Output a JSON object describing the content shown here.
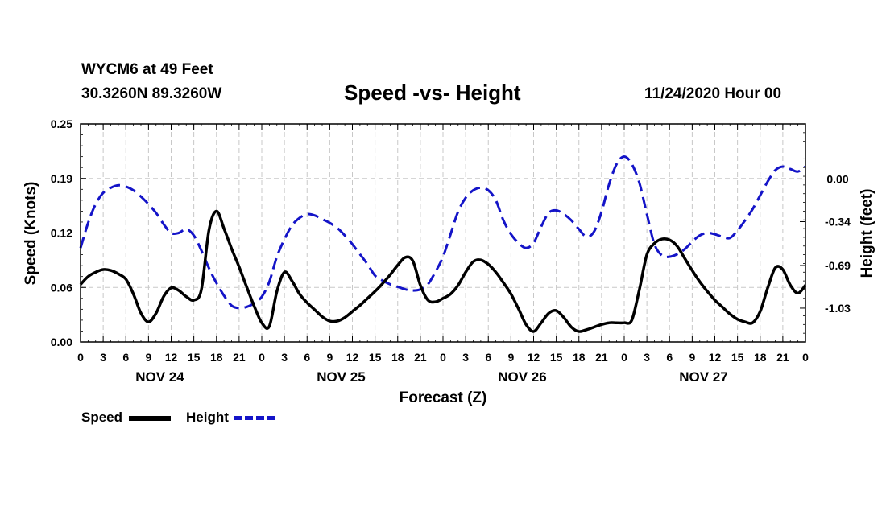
{
  "header": {
    "station": "WYCM6 at 49 Feet",
    "coords": "30.3260N 89.3260W",
    "title": "Speed -vs- Height",
    "date": "11/24/2020 Hour 00"
  },
  "legend": {
    "speed": "Speed",
    "height": "Height"
  },
  "chart_data": {
    "type": "line",
    "title": "Speed -vs- Height",
    "xlabel": "Forecast (Z)",
    "ylabel": "Speed (Knots)",
    "y2label": "Height (feet)",
    "ylim": [
      0,
      0.25
    ],
    "y2lim": [
      -1.3,
      0.44
    ],
    "yticks": [
      "0.00",
      "0.06",
      "0.12",
      "0.19",
      "0.25"
    ],
    "y2ticks": [
      {
        "label": "0.00",
        "value": 0.0
      },
      {
        "label": "-0.34",
        "value": -0.34
      },
      {
        "label": "-0.69",
        "value": -0.69
      },
      {
        "label": "-1.03",
        "value": -1.03
      }
    ],
    "xlim": [
      0,
      96
    ],
    "xticks": [
      "0",
      "3",
      "6",
      "9",
      "12",
      "15",
      "18",
      "21",
      "0",
      "3",
      "6",
      "9",
      "12",
      "15",
      "18",
      "21",
      "0",
      "3",
      "6",
      "9",
      "12",
      "15",
      "18",
      "21",
      "0",
      "3",
      "6",
      "9",
      "12",
      "15",
      "18",
      "21",
      "0"
    ],
    "days": [
      {
        "label": "NOV 24",
        "center": 10.5
      },
      {
        "label": "NOV 25",
        "center": 34.5
      },
      {
        "label": "NOV 26",
        "center": 58.5
      },
      {
        "label": "NOV 27",
        "center": 82.5
      }
    ],
    "grid": true,
    "series": [
      {
        "name": "Speed",
        "axis": "left",
        "color": "#000000",
        "style": "solid",
        "points": [
          [
            0,
            0.066
          ],
          [
            1,
            0.075
          ],
          [
            2,
            0.08
          ],
          [
            3,
            0.083
          ],
          [
            4,
            0.082
          ],
          [
            5,
            0.078
          ],
          [
            6,
            0.072
          ],
          [
            7,
            0.055
          ],
          [
            8,
            0.033
          ],
          [
            9,
            0.023
          ],
          [
            10,
            0.033
          ],
          [
            11,
            0.052
          ],
          [
            12,
            0.062
          ],
          [
            13,
            0.059
          ],
          [
            14,
            0.052
          ],
          [
            15,
            0.048
          ],
          [
            16,
            0.06
          ],
          [
            17,
            0.128
          ],
          [
            18,
            0.15
          ],
          [
            19,
            0.13
          ],
          [
            20,
            0.107
          ],
          [
            21,
            0.086
          ],
          [
            22,
            0.063
          ],
          [
            23,
            0.041
          ],
          [
            24,
            0.022
          ],
          [
            25,
            0.018
          ],
          [
            26,
            0.058
          ],
          [
            27,
            0.08
          ],
          [
            28,
            0.07
          ],
          [
            29,
            0.055
          ],
          [
            30,
            0.045
          ],
          [
            31,
            0.037
          ],
          [
            32,
            0.029
          ],
          [
            33,
            0.024
          ],
          [
            34,
            0.024
          ],
          [
            35,
            0.028
          ],
          [
            36,
            0.035
          ],
          [
            37,
            0.042
          ],
          [
            38,
            0.05
          ],
          [
            39,
            0.058
          ],
          [
            40,
            0.067
          ],
          [
            41,
            0.077
          ],
          [
            42,
            0.088
          ],
          [
            43,
            0.097
          ],
          [
            44,
            0.093
          ],
          [
            45,
            0.065
          ],
          [
            46,
            0.048
          ],
          [
            47,
            0.046
          ],
          [
            48,
            0.05
          ],
          [
            49,
            0.055
          ],
          [
            50,
            0.065
          ],
          [
            51,
            0.08
          ],
          [
            52,
            0.092
          ],
          [
            53,
            0.094
          ],
          [
            54,
            0.089
          ],
          [
            55,
            0.08
          ],
          [
            56,
            0.068
          ],
          [
            57,
            0.055
          ],
          [
            58,
            0.038
          ],
          [
            59,
            0.02
          ],
          [
            60,
            0.012
          ],
          [
            61,
            0.022
          ],
          [
            62,
            0.033
          ],
          [
            63,
            0.036
          ],
          [
            64,
            0.028
          ],
          [
            65,
            0.017
          ],
          [
            66,
            0.012
          ],
          [
            67,
            0.014
          ],
          [
            68,
            0.017
          ],
          [
            69,
            0.02
          ],
          [
            70,
            0.022
          ],
          [
            71,
            0.022
          ],
          [
            72,
            0.022
          ],
          [
            73,
            0.025
          ],
          [
            74,
            0.06
          ],
          [
            75,
            0.1
          ],
          [
            76,
            0.113
          ],
          [
            77,
            0.118
          ],
          [
            78,
            0.117
          ],
          [
            79,
            0.11
          ],
          [
            80,
            0.096
          ],
          [
            81,
            0.082
          ],
          [
            82,
            0.069
          ],
          [
            83,
            0.058
          ],
          [
            84,
            0.048
          ],
          [
            85,
            0.04
          ],
          [
            86,
            0.032
          ],
          [
            87,
            0.026
          ],
          [
            88,
            0.023
          ],
          [
            89,
            0.022
          ],
          [
            90,
            0.035
          ],
          [
            91,
            0.062
          ],
          [
            92,
            0.085
          ],
          [
            93,
            0.083
          ],
          [
            94,
            0.065
          ],
          [
            95,
            0.056
          ],
          [
            96,
            0.065
          ]
        ]
      },
      {
        "name": "Height",
        "axis": "right",
        "color": "#1414c8",
        "style": "dashed",
        "points": [
          [
            0,
            -0.55
          ],
          [
            1,
            -0.35
          ],
          [
            2,
            -0.2
          ],
          [
            3,
            -0.11
          ],
          [
            4,
            -0.07
          ],
          [
            5,
            -0.05
          ],
          [
            6,
            -0.06
          ],
          [
            7,
            -0.09
          ],
          [
            8,
            -0.14
          ],
          [
            9,
            -0.2
          ],
          [
            10,
            -0.27
          ],
          [
            11,
            -0.36
          ],
          [
            12,
            -0.43
          ],
          [
            13,
            -0.43
          ],
          [
            14,
            -0.4
          ],
          [
            15,
            -0.45
          ],
          [
            16,
            -0.57
          ],
          [
            17,
            -0.71
          ],
          [
            18,
            -0.83
          ],
          [
            19,
            -0.93
          ],
          [
            20,
            -1.01
          ],
          [
            21,
            -1.03
          ],
          [
            22,
            -1.02
          ],
          [
            23,
            -0.99
          ],
          [
            24,
            -0.94
          ],
          [
            25,
            -0.82
          ],
          [
            26,
            -0.62
          ],
          [
            27,
            -0.48
          ],
          [
            28,
            -0.37
          ],
          [
            29,
            -0.31
          ],
          [
            30,
            -0.28
          ],
          [
            31,
            -0.29
          ],
          [
            32,
            -0.32
          ],
          [
            33,
            -0.35
          ],
          [
            34,
            -0.39
          ],
          [
            35,
            -0.45
          ],
          [
            36,
            -0.52
          ],
          [
            37,
            -0.6
          ],
          [
            38,
            -0.68
          ],
          [
            39,
            -0.77
          ],
          [
            40,
            -0.81
          ],
          [
            41,
            -0.84
          ],
          [
            42,
            -0.86
          ],
          [
            43,
            -0.88
          ],
          [
            44,
            -0.89
          ],
          [
            45,
            -0.88
          ],
          [
            46,
            -0.84
          ],
          [
            47,
            -0.74
          ],
          [
            48,
            -0.62
          ],
          [
            49,
            -0.44
          ],
          [
            50,
            -0.26
          ],
          [
            51,
            -0.15
          ],
          [
            52,
            -0.09
          ],
          [
            53,
            -0.07
          ],
          [
            54,
            -0.09
          ],
          [
            55,
            -0.17
          ],
          [
            56,
            -0.33
          ],
          [
            57,
            -0.44
          ],
          [
            58,
            -0.51
          ],
          [
            59,
            -0.55
          ],
          [
            60,
            -0.51
          ],
          [
            61,
            -0.38
          ],
          [
            62,
            -0.27
          ],
          [
            63,
            -0.25
          ],
          [
            64,
            -0.28
          ],
          [
            65,
            -0.33
          ],
          [
            66,
            -0.4
          ],
          [
            67,
            -0.46
          ],
          [
            68,
            -0.42
          ],
          [
            69,
            -0.26
          ],
          [
            70,
            -0.04
          ],
          [
            71,
            0.12
          ],
          [
            72,
            0.18
          ],
          [
            73,
            0.12
          ],
          [
            74,
            -0.03
          ],
          [
            75,
            -0.28
          ],
          [
            76,
            -0.52
          ],
          [
            77,
            -0.61
          ],
          [
            78,
            -0.62
          ],
          [
            79,
            -0.6
          ],
          [
            80,
            -0.56
          ],
          [
            81,
            -0.5
          ],
          [
            82,
            -0.45
          ],
          [
            83,
            -0.43
          ],
          [
            84,
            -0.44
          ],
          [
            85,
            -0.46
          ],
          [
            86,
            -0.47
          ],
          [
            87,
            -0.41
          ],
          [
            88,
            -0.33
          ],
          [
            89,
            -0.24
          ],
          [
            90,
            -0.13
          ],
          [
            91,
            -0.02
          ],
          [
            92,
            0.07
          ],
          [
            93,
            0.1
          ],
          [
            94,
            0.08
          ],
          [
            95,
            0.06
          ],
          [
            96,
            0.1
          ]
        ]
      }
    ]
  }
}
